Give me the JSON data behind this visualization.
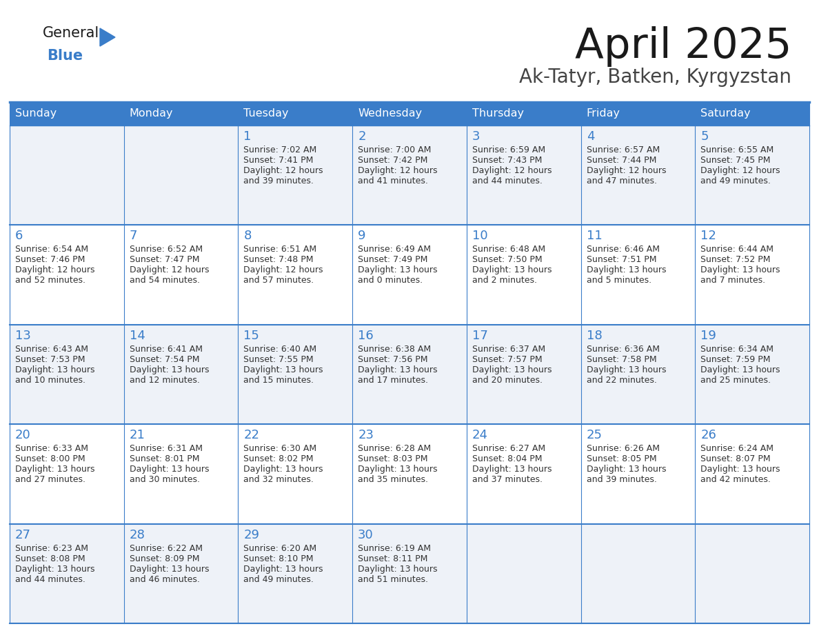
{
  "title": "April 2025",
  "subtitle": "Ak-Tatyr, Batken, Kyrgyzstan",
  "header_bg": "#3a7dc9",
  "header_text_color": "#ffffff",
  "row_bg_light": "#eef2f8",
  "row_bg_white": "#ffffff",
  "border_color": "#3a7dc9",
  "title_color": "#1a1a1a",
  "subtitle_color": "#444444",
  "number_color": "#3a7dc9",
  "text_color": "#333333",
  "logo_text_color": "#1a1a1a",
  "logo_blue_color": "#3a7dc9",
  "day_names": [
    "Sunday",
    "Monday",
    "Tuesday",
    "Wednesday",
    "Thursday",
    "Friday",
    "Saturday"
  ],
  "days": [
    {
      "date": 1,
      "col": 2,
      "row": 0,
      "sunrise": "7:02 AM",
      "sunset": "7:41 PM",
      "daylight": "12 hours and 39 minutes."
    },
    {
      "date": 2,
      "col": 3,
      "row": 0,
      "sunrise": "7:00 AM",
      "sunset": "7:42 PM",
      "daylight": "12 hours and 41 minutes."
    },
    {
      "date": 3,
      "col": 4,
      "row": 0,
      "sunrise": "6:59 AM",
      "sunset": "7:43 PM",
      "daylight": "12 hours and 44 minutes."
    },
    {
      "date": 4,
      "col": 5,
      "row": 0,
      "sunrise": "6:57 AM",
      "sunset": "7:44 PM",
      "daylight": "12 hours and 47 minutes."
    },
    {
      "date": 5,
      "col": 6,
      "row": 0,
      "sunrise": "6:55 AM",
      "sunset": "7:45 PM",
      "daylight": "12 hours and 49 minutes."
    },
    {
      "date": 6,
      "col": 0,
      "row": 1,
      "sunrise": "6:54 AM",
      "sunset": "7:46 PM",
      "daylight": "12 hours and 52 minutes."
    },
    {
      "date": 7,
      "col": 1,
      "row": 1,
      "sunrise": "6:52 AM",
      "sunset": "7:47 PM",
      "daylight": "12 hours and 54 minutes."
    },
    {
      "date": 8,
      "col": 2,
      "row": 1,
      "sunrise": "6:51 AM",
      "sunset": "7:48 PM",
      "daylight": "12 hours and 57 minutes."
    },
    {
      "date": 9,
      "col": 3,
      "row": 1,
      "sunrise": "6:49 AM",
      "sunset": "7:49 PM",
      "daylight": "13 hours and 0 minutes."
    },
    {
      "date": 10,
      "col": 4,
      "row": 1,
      "sunrise": "6:48 AM",
      "sunset": "7:50 PM",
      "daylight": "13 hours and 2 minutes."
    },
    {
      "date": 11,
      "col": 5,
      "row": 1,
      "sunrise": "6:46 AM",
      "sunset": "7:51 PM",
      "daylight": "13 hours and 5 minutes."
    },
    {
      "date": 12,
      "col": 6,
      "row": 1,
      "sunrise": "6:44 AM",
      "sunset": "7:52 PM",
      "daylight": "13 hours and 7 minutes."
    },
    {
      "date": 13,
      "col": 0,
      "row": 2,
      "sunrise": "6:43 AM",
      "sunset": "7:53 PM",
      "daylight": "13 hours and 10 minutes."
    },
    {
      "date": 14,
      "col": 1,
      "row": 2,
      "sunrise": "6:41 AM",
      "sunset": "7:54 PM",
      "daylight": "13 hours and 12 minutes."
    },
    {
      "date": 15,
      "col": 2,
      "row": 2,
      "sunrise": "6:40 AM",
      "sunset": "7:55 PM",
      "daylight": "13 hours and 15 minutes."
    },
    {
      "date": 16,
      "col": 3,
      "row": 2,
      "sunrise": "6:38 AM",
      "sunset": "7:56 PM",
      "daylight": "13 hours and 17 minutes."
    },
    {
      "date": 17,
      "col": 4,
      "row": 2,
      "sunrise": "6:37 AM",
      "sunset": "7:57 PM",
      "daylight": "13 hours and 20 minutes."
    },
    {
      "date": 18,
      "col": 5,
      "row": 2,
      "sunrise": "6:36 AM",
      "sunset": "7:58 PM",
      "daylight": "13 hours and 22 minutes."
    },
    {
      "date": 19,
      "col": 6,
      "row": 2,
      "sunrise": "6:34 AM",
      "sunset": "7:59 PM",
      "daylight": "13 hours and 25 minutes."
    },
    {
      "date": 20,
      "col": 0,
      "row": 3,
      "sunrise": "6:33 AM",
      "sunset": "8:00 PM",
      "daylight": "13 hours and 27 minutes."
    },
    {
      "date": 21,
      "col": 1,
      "row": 3,
      "sunrise": "6:31 AM",
      "sunset": "8:01 PM",
      "daylight": "13 hours and 30 minutes."
    },
    {
      "date": 22,
      "col": 2,
      "row": 3,
      "sunrise": "6:30 AM",
      "sunset": "8:02 PM",
      "daylight": "13 hours and 32 minutes."
    },
    {
      "date": 23,
      "col": 3,
      "row": 3,
      "sunrise": "6:28 AM",
      "sunset": "8:03 PM",
      "daylight": "13 hours and 35 minutes."
    },
    {
      "date": 24,
      "col": 4,
      "row": 3,
      "sunrise": "6:27 AM",
      "sunset": "8:04 PM",
      "daylight": "13 hours and 37 minutes."
    },
    {
      "date": 25,
      "col": 5,
      "row": 3,
      "sunrise": "6:26 AM",
      "sunset": "8:05 PM",
      "daylight": "13 hours and 39 minutes."
    },
    {
      "date": 26,
      "col": 6,
      "row": 3,
      "sunrise": "6:24 AM",
      "sunset": "8:07 PM",
      "daylight": "13 hours and 42 minutes."
    },
    {
      "date": 27,
      "col": 0,
      "row": 4,
      "sunrise": "6:23 AM",
      "sunset": "8:08 PM",
      "daylight": "13 hours and 44 minutes."
    },
    {
      "date": 28,
      "col": 1,
      "row": 4,
      "sunrise": "6:22 AM",
      "sunset": "8:09 PM",
      "daylight": "13 hours and 46 minutes."
    },
    {
      "date": 29,
      "col": 2,
      "row": 4,
      "sunrise": "6:20 AM",
      "sunset": "8:10 PM",
      "daylight": "13 hours and 49 minutes."
    },
    {
      "date": 30,
      "col": 3,
      "row": 4,
      "sunrise": "6:19 AM",
      "sunset": "8:11 PM",
      "daylight": "13 hours and 51 minutes."
    }
  ]
}
